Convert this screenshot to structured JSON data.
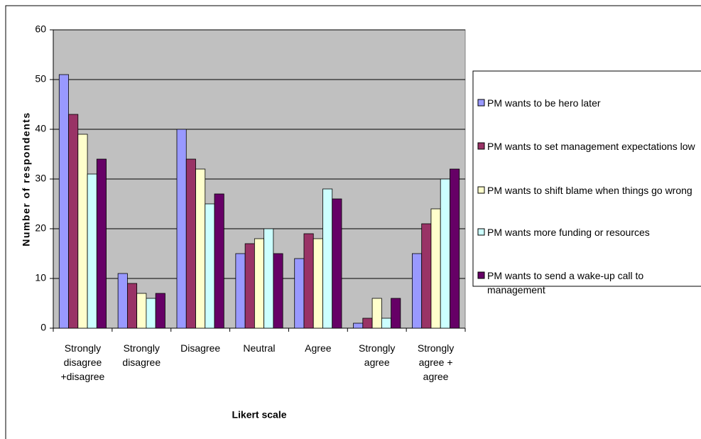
{
  "chart_data": {
    "type": "bar",
    "x_label": "Likert scale",
    "y_label": "Number of respondents",
    "categories": [
      "Strongly disagree +disagree",
      "Strongly disagree",
      "Disagree",
      "Neutral",
      "Agree",
      "Strongly agree",
      "Strongly agree + agree"
    ],
    "series": [
      {
        "name": "PM wants to be hero later",
        "color": "#9999ff",
        "values": [
          51,
          11,
          40,
          15,
          14,
          1,
          15
        ]
      },
      {
        "name": "PM wants to set management expectations low",
        "color": "#993366",
        "values": [
          43,
          9,
          34,
          17,
          19,
          2,
          21
        ]
      },
      {
        "name": "PM wants to shift blame when things go wrong",
        "color": "#ffffcc",
        "values": [
          39,
          7,
          32,
          18,
          18,
          6,
          24
        ]
      },
      {
        "name": "PM wants more funding or resources",
        "color": "#ccffff",
        "values": [
          31,
          6,
          25,
          20,
          28,
          2,
          30
        ]
      },
      {
        "name": "PM wants to send a wake-up call to management",
        "color": "#660066",
        "values": [
          34,
          7,
          27,
          15,
          26,
          6,
          32
        ]
      }
    ],
    "ylim": [
      0,
      60
    ],
    "yticks": [
      0,
      10,
      20,
      30,
      40,
      50,
      60
    ],
    "grid": true,
    "legend": "right"
  }
}
